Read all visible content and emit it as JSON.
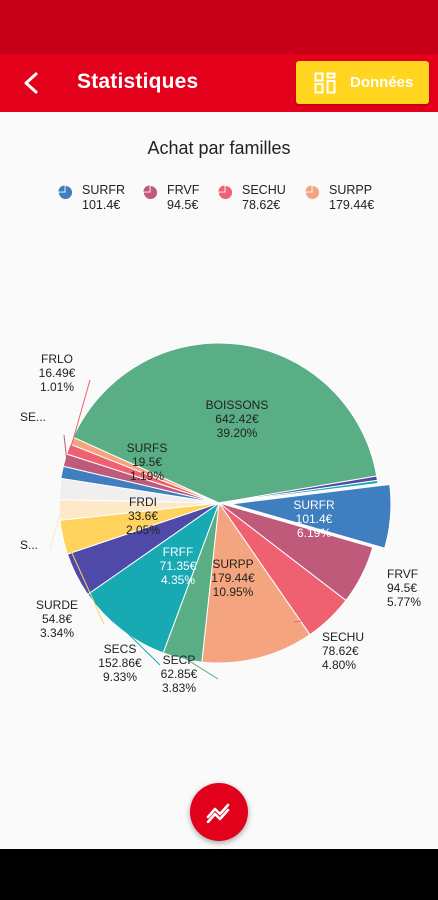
{
  "header": {
    "title": "Statistiques",
    "data_button_label": "Données"
  },
  "icons": {
    "back": "back-arrow-icon",
    "data": "grid-icon",
    "fab": "chart-line-icon"
  },
  "colors": {
    "status_bar": "#c8001a",
    "app_bar": "#e3001b",
    "accent": "#ffd51f",
    "fab": "#e3001b"
  },
  "legend": [
    {
      "name": "SURFR",
      "value": "101.4€",
      "color": "#3f7ebf"
    },
    {
      "name": "FRVF",
      "value": "94.5€",
      "color": "#c05a7a"
    },
    {
      "name": "SECHU",
      "value": "78.62€",
      "color": "#ef6071"
    },
    {
      "name": "SURPP",
      "value": "179.44€",
      "color": "#f4a580"
    }
  ],
  "chart_data": {
    "type": "pie",
    "title": "Achat par familles",
    "slices": [
      {
        "name": "SURFR",
        "value": 101.4,
        "value_label": "101.4€",
        "percent": "6.19%",
        "color": "#3f7ebf"
      },
      {
        "name": "FRVF",
        "value": 94.5,
        "value_label": "94.5€",
        "percent": "5.77%",
        "color": "#c05a7a"
      },
      {
        "name": "SECHU",
        "value": 78.62,
        "value_label": "78.62€",
        "percent": "4.80%",
        "color": "#ef6071"
      },
      {
        "name": "SURPP",
        "value": 179.44,
        "value_label": "179.44€",
        "percent": "10.95%",
        "color": "#f4a580"
      },
      {
        "name": "SECP",
        "value": 62.85,
        "value_label": "62.85€",
        "percent": "3.83%",
        "color": "#5aae86"
      },
      {
        "name": "SECS",
        "value": 152.86,
        "value_label": "152.86€",
        "percent": "9.33%",
        "color": "#17aab3"
      },
      {
        "name": "FRFF",
        "value": 71.35,
        "value_label": "71.35€",
        "percent": "4.35%",
        "color": "#4f4aa8"
      },
      {
        "name": "SURDE",
        "value": 54.8,
        "value_label": "54.8€",
        "percent": "3.34%",
        "color": "#ffd35e"
      },
      {
        "name": "S...",
        "value": 32.5,
        "value_label": "",
        "percent": "",
        "color": "#fde9c7"
      },
      {
        "name": "FRDI",
        "value": 33.6,
        "value_label": "33.6€",
        "percent": "2.05%",
        "color": "#efefef"
      },
      {
        "name": "SURFS",
        "value": 19.5,
        "value_label": "19.5€",
        "percent": "1.19%",
        "color": "#3f7ebf"
      },
      {
        "name": "SE...",
        "value": 20.0,
        "value_label": "",
        "percent": "",
        "color": "#c05a7a"
      },
      {
        "name": "FRLO",
        "value": 16.49,
        "value_label": "16.49€",
        "percent": "1.01%",
        "color": "#ef6071"
      },
      {
        "name": "",
        "value": 12.0,
        "value_label": "",
        "percent": "",
        "color": "#f4a580"
      },
      {
        "name": "BOISSONS",
        "value": 642.42,
        "value_label": "642.42€",
        "percent": "39.20%",
        "color": "#5aae86"
      },
      {
        "name": "",
        "value": 7.0,
        "value_label": "",
        "percent": "",
        "color": "#4f4aa8"
      },
      {
        "name": "",
        "value": 5.0,
        "value_label": "",
        "percent": "",
        "color": "#17aab3"
      }
    ]
  }
}
